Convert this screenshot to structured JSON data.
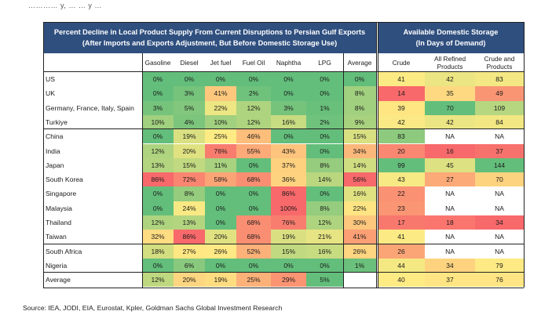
{
  "cut_text": "………… y, … … y …",
  "left_title_1": "Percent Decline in Local Product Supply From Current Disruptions to Persian Gulf Exports",
  "left_title_2": "(After Imports and Exports Adjustment, But Before Domestic Storage Use)",
  "right_title_1": "Available Domestic Storage",
  "right_title_2": "(In Days of Demand)",
  "source": "Source: IEA, JODI, EIA, Eurostat, Kpler, Goldman Sachs Global Investment Research",
  "colors": {
    "header_bg": "#2f4f7f",
    "green": "#63be7b",
    "yellow": "#ffeb84",
    "red": "#f8696b"
  },
  "chart_data": {
    "type": "table",
    "left_columns": [
      "Gasoline",
      "Diesel",
      "Jet fuel",
      "Fuel Oil",
      "Naphtha",
      "LPG",
      "Average"
    ],
    "right_columns": [
      "Crude",
      "All Refined Products",
      "Crude and Products"
    ],
    "rows": [
      {
        "label": "US",
        "pct": [
          "0%",
          "0%",
          "0%",
          "0%",
          "0%",
          "0%",
          "0%"
        ],
        "storage": [
          "41",
          "42",
          "83"
        ]
      },
      {
        "label": "UK",
        "pct": [
          "0%",
          "3%",
          "41%",
          "2%",
          "0%",
          "0%",
          "8%"
        ],
        "storage": [
          "14",
          "35",
          "49"
        ]
      },
      {
        "label": "Germany, France, Italy, Spain",
        "pct": [
          "3%",
          "5%",
          "22%",
          "12%",
          "3%",
          "1%",
          "8%"
        ],
        "storage": [
          "39",
          "70",
          "109"
        ]
      },
      {
        "label": "Turkiye",
        "pct": [
          "10%",
          "4%",
          "10%",
          "12%",
          "16%",
          "2%",
          "9%"
        ],
        "storage": [
          "42",
          "42",
          "84"
        ]
      },
      {
        "label": "China",
        "pct": [
          "0%",
          "19%",
          "25%",
          "46%",
          "0%",
          "0%",
          "15%"
        ],
        "storage": [
          "83",
          "NA",
          "NA"
        ]
      },
      {
        "label": "India",
        "pct": [
          "12%",
          "20%",
          "76%",
          "55%",
          "43%",
          "0%",
          "34%"
        ],
        "storage": [
          "20",
          "16",
          "37"
        ]
      },
      {
        "label": "Japan",
        "pct": [
          "13%",
          "15%",
          "11%",
          "0%",
          "37%",
          "8%",
          "14%"
        ],
        "storage": [
          "99",
          "45",
          "144"
        ]
      },
      {
        "label": "South Korea",
        "pct": [
          "86%",
          "72%",
          "58%",
          "68%",
          "36%",
          "14%",
          "56%"
        ],
        "storage": [
          "43",
          "27",
          "70"
        ]
      },
      {
        "label": "Singapore",
        "pct": [
          "0%",
          "8%",
          "0%",
          "0%",
          "86%",
          "0%",
          "16%"
        ],
        "storage": [
          "22",
          "NA",
          "NA"
        ]
      },
      {
        "label": "Malaysia",
        "pct": [
          "0%",
          "24%",
          "0%",
          "0%",
          "100%",
          "8%",
          "22%"
        ],
        "storage": [
          "23",
          "NA",
          "NA"
        ]
      },
      {
        "label": "Thailand",
        "pct": [
          "12%",
          "13%",
          "0%",
          "68%",
          "76%",
          "12%",
          "30%"
        ],
        "storage": [
          "17",
          "18",
          "34"
        ]
      },
      {
        "label": "Taiwan",
        "pct": [
          "32%",
          "86%",
          "20%",
          "68%",
          "19%",
          "21%",
          "41%"
        ],
        "storage": [
          "41",
          "NA",
          "NA"
        ]
      },
      {
        "label": "South Africa",
        "pct": [
          "18%",
          "27%",
          "26%",
          "52%",
          "15%",
          "16%",
          "26%"
        ],
        "storage": [
          "26",
          "NA",
          "NA"
        ]
      },
      {
        "label": "Nigeria",
        "pct": [
          "0%",
          "6%",
          "0%",
          "0%",
          "0%",
          "0%",
          "1%"
        ],
        "storage": [
          "44",
          "34",
          "79"
        ]
      },
      {
        "label": "Average",
        "pct": [
          "12%",
          "20%",
          "19%",
          "25%",
          "29%",
          "5%",
          ""
        ],
        "storage": [
          "40",
          "37",
          "76"
        ]
      }
    ]
  }
}
